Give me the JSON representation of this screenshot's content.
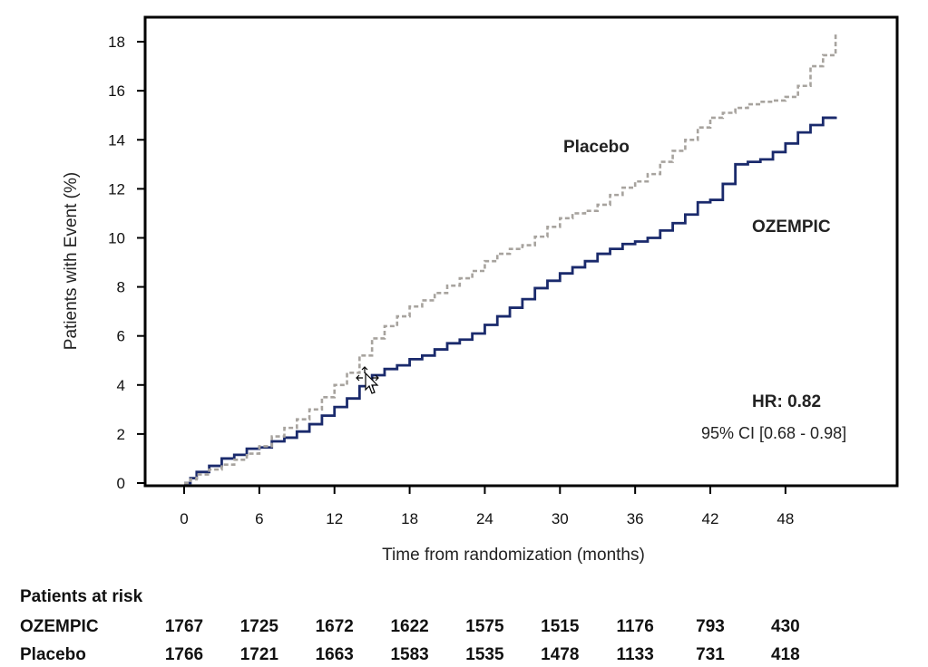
{
  "chart_data": {
    "type": "line",
    "title": "",
    "xlabel": "Time from randomization (months)",
    "ylabel": "Patients with Event (%)",
    "xlim": [
      -1,
      55
    ],
    "ylim": [
      0,
      19
    ],
    "xticks": [
      "0",
      "6",
      "12",
      "18",
      "24",
      "30",
      "36",
      "42",
      "48"
    ],
    "xtick_values": [
      0,
      6,
      12,
      18,
      24,
      30,
      36,
      42,
      48
    ],
    "yticks": [
      "0",
      "2",
      "4",
      "6",
      "8",
      "10",
      "12",
      "14",
      "16",
      "18"
    ],
    "ytick_values": [
      0,
      2,
      4,
      6,
      8,
      10,
      12,
      14,
      16,
      18
    ],
    "series": [
      {
        "name": "OZEMPIC",
        "color": "#1a2a6c",
        "style": "solid",
        "x": [
          0,
          0.5,
          1,
          2,
          3,
          4,
          5,
          6,
          7,
          8,
          9,
          10,
          11,
          12,
          13,
          14,
          15,
          16,
          17,
          18,
          19,
          20,
          21,
          22,
          23,
          24,
          25,
          26,
          27,
          28,
          29,
          30,
          31,
          32,
          33,
          34,
          35,
          36,
          37,
          38,
          39,
          40,
          41,
          42,
          43,
          44,
          45,
          46,
          47,
          48,
          49,
          50,
          51,
          52
        ],
        "y": [
          0,
          0.2,
          0.45,
          0.7,
          1.0,
          1.15,
          1.4,
          1.45,
          1.7,
          1.85,
          2.1,
          2.4,
          2.75,
          3.1,
          3.45,
          3.95,
          4.4,
          4.65,
          4.8,
          5.05,
          5.2,
          5.45,
          5.7,
          5.85,
          6.1,
          6.45,
          6.8,
          7.15,
          7.5,
          7.95,
          8.25,
          8.55,
          8.8,
          9.05,
          9.35,
          9.55,
          9.75,
          9.85,
          10.0,
          10.3,
          10.6,
          10.95,
          11.45,
          11.55,
          12.2,
          13.0,
          13.1,
          13.2,
          13.5,
          13.85,
          14.3,
          14.6,
          14.9,
          14.95
        ]
      },
      {
        "name": "Placebo",
        "color": "#a7a39e",
        "style": "dashed",
        "x": [
          0,
          0.5,
          1,
          2,
          3,
          4,
          5,
          6,
          7,
          8,
          9,
          10,
          11,
          12,
          13,
          14,
          15,
          16,
          17,
          18,
          19,
          20,
          21,
          22,
          23,
          24,
          25,
          26,
          27,
          28,
          29,
          30,
          31,
          32,
          33,
          34,
          35,
          36,
          37,
          38,
          39,
          40,
          41,
          42,
          43,
          44,
          45,
          46,
          47,
          48,
          49,
          50,
          51,
          52
        ],
        "y": [
          0,
          0.15,
          0.35,
          0.55,
          0.75,
          0.95,
          1.2,
          1.5,
          1.9,
          2.25,
          2.6,
          3.0,
          3.5,
          4.0,
          4.5,
          5.2,
          5.9,
          6.4,
          6.8,
          7.2,
          7.45,
          7.75,
          8.05,
          8.35,
          8.65,
          9.05,
          9.35,
          9.55,
          9.7,
          10.05,
          10.45,
          10.8,
          11.0,
          11.1,
          11.35,
          11.75,
          12.05,
          12.3,
          12.6,
          13.1,
          13.55,
          14.0,
          14.5,
          14.9,
          15.1,
          15.3,
          15.45,
          15.55,
          15.6,
          15.75,
          16.2,
          17.0,
          17.45,
          18.4
        ]
      }
    ],
    "annotations": {
      "placebo_label": "Placebo",
      "ozempic_label": "OZEMPIC",
      "hr_prefix": "HR: ",
      "hr_value": "0.82",
      "ci": "95% CI [0.68 - 0.98]"
    }
  },
  "risk_table": {
    "title": "Patients at risk",
    "rows": [
      {
        "name": "OZEMPIC",
        "values": [
          "1767",
          "1725",
          "1672",
          "1622",
          "1575",
          "1515",
          "1176",
          "793",
          "430"
        ]
      },
      {
        "name": "Placebo",
        "values": [
          "1766",
          "1721",
          "1663",
          "1583",
          "1535",
          "1478",
          "1133",
          "731",
          "418"
        ]
      }
    ]
  }
}
